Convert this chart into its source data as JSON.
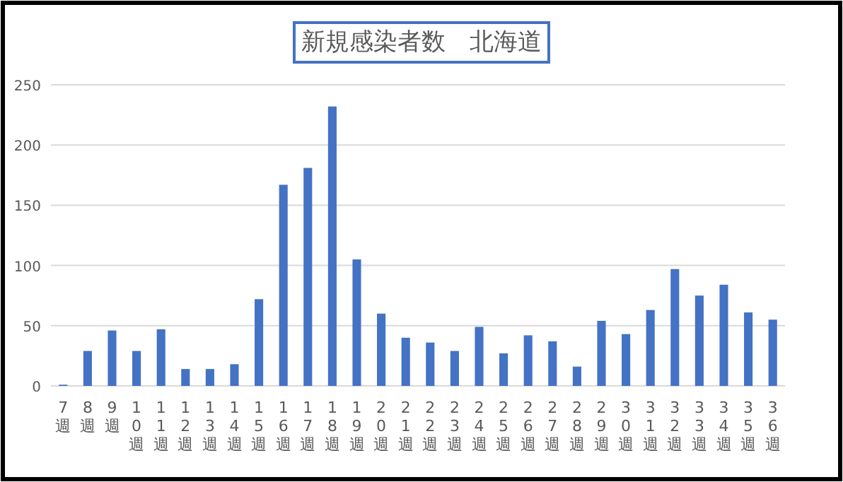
{
  "chart_data": {
    "type": "bar",
    "title": "新規感染者数　北海道",
    "categories": [
      "7週",
      "8週",
      "9週",
      "10週",
      "11週",
      "12週",
      "13週",
      "14週",
      "15週",
      "16週",
      "17週",
      "18週",
      "19週",
      "20週",
      "21週",
      "22週",
      "23週",
      "24週",
      "25週",
      "26週",
      "27週",
      "28週",
      "29週",
      "30週",
      "31週",
      "32週",
      "33週",
      "34週",
      "35週",
      "36週"
    ],
    "values": [
      1,
      29,
      46,
      29,
      47,
      14,
      14,
      18,
      72,
      167,
      181,
      232,
      105,
      60,
      40,
      36,
      29,
      49,
      27,
      42,
      37,
      16,
      54,
      43,
      63,
      97,
      75,
      84,
      61,
      55
    ],
    "color": "#4472c4",
    "ylim": [
      0,
      250
    ],
    "yticks": [
      0,
      50,
      100,
      150,
      200,
      250
    ],
    "grid": "y"
  }
}
